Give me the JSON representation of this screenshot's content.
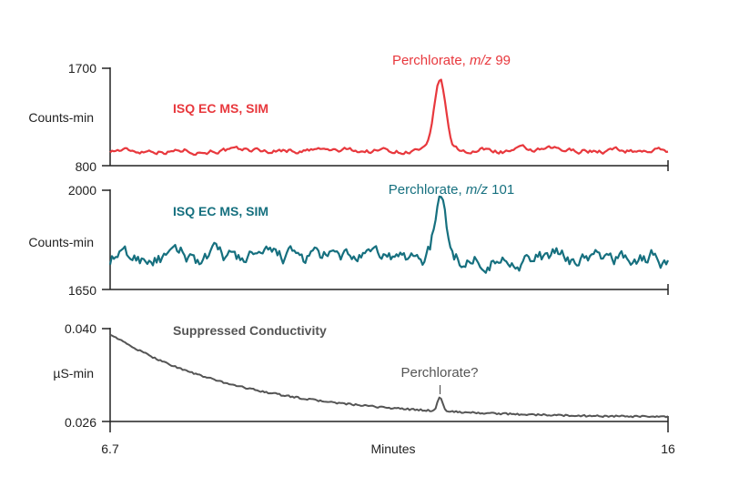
{
  "chart_data": {
    "type": "line",
    "xlabel": "Minutes",
    "xlim": [
      6.7,
      16
    ],
    "x_tick_labels": [
      "6.7",
      "16"
    ],
    "panels": [
      {
        "id": "ms99",
        "series_label": "ISQ EC MS, SIM",
        "ylabel": "Counts-min",
        "ylim": [
          800,
          1700
        ],
        "y_tick_labels": [
          "1700",
          "800"
        ],
        "color": "#e8383d",
        "annotation": "Perchlorate, ",
        "annotation_italic": "m/z",
        "annotation_suffix": " 99",
        "peak": {
          "x": 12.2,
          "y": 1590
        },
        "baseline": 940,
        "noise": 35
      },
      {
        "id": "ms101",
        "series_label": "ISQ EC MS, SIM",
        "ylabel": "Counts-min",
        "ylim": [
          1650,
          2000
        ],
        "y_tick_labels": [
          "2000",
          "1650"
        ],
        "color": "#16707f",
        "annotation": "Perchlorate, ",
        "annotation_italic": "m/z",
        "annotation_suffix": " 101",
        "peak": {
          "x": 12.2,
          "y": 1970
        },
        "baseline": 1760,
        "noise": 45
      },
      {
        "id": "cond",
        "series_label": "Suppressed Conductivity",
        "ylabel": "µS-min",
        "ylim": [
          0.026,
          0.04
        ],
        "y_tick_labels": [
          "0.040",
          "0.026"
        ],
        "color": "#555555",
        "annotation": "Perchlorate?",
        "peak": {
          "x": 12.2,
          "y": 0.0297
        },
        "start": 0.0392,
        "end": 0.0265
      }
    ]
  }
}
